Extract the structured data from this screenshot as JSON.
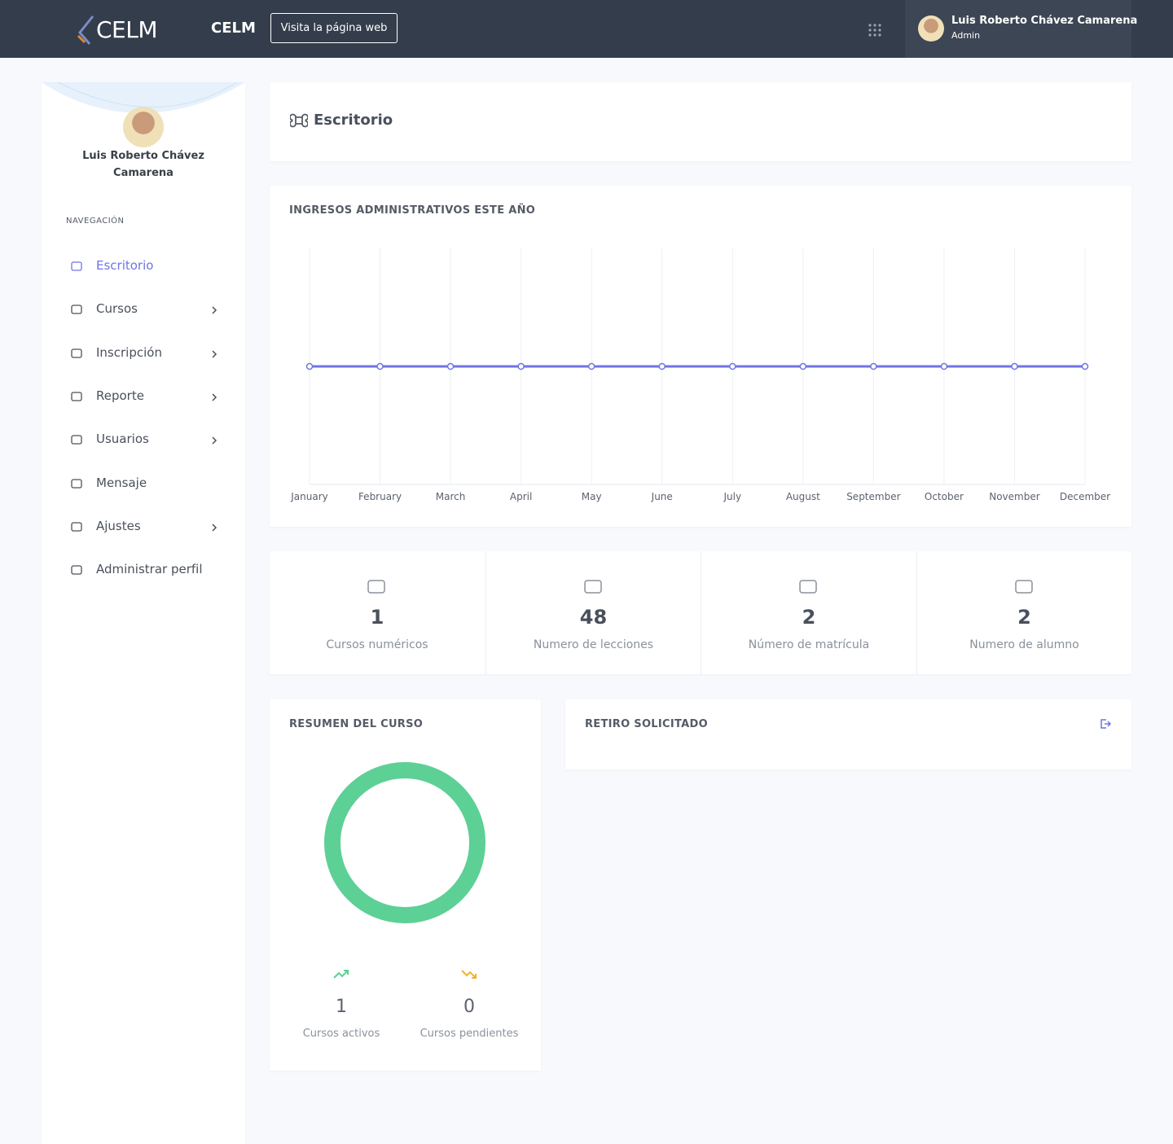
{
  "header": {
    "logo": "CELM",
    "brand": "CELM",
    "website_button": "Visita la página web",
    "user_name": "Luis Roberto Chávez Camarena",
    "user_role": "Admin"
  },
  "sidebar": {
    "user_name": "Luis Roberto Chávez Camarena",
    "nav_title": "NAVEGACIÓN",
    "items": [
      {
        "label": "Escritorio",
        "has_submenu": false,
        "active": true
      },
      {
        "label": "Cursos",
        "has_submenu": true,
        "active": false
      },
      {
        "label": "Inscripción",
        "has_submenu": true,
        "active": false
      },
      {
        "label": "Reporte",
        "has_submenu": true,
        "active": false
      },
      {
        "label": "Usuarios",
        "has_submenu": true,
        "active": false
      },
      {
        "label": "Mensaje",
        "has_submenu": false,
        "active": false
      },
      {
        "label": "Ajustes",
        "has_submenu": true,
        "active": false
      },
      {
        "label": "Administrar perfil",
        "has_submenu": false,
        "active": false
      }
    ]
  },
  "page_title": "Escritorio",
  "chart_data": {
    "type": "line",
    "title": "INGRESOS ADMINISTRATIVOS ESTE AÑO",
    "categories": [
      "January",
      "February",
      "March",
      "April",
      "May",
      "June",
      "July",
      "August",
      "September",
      "October",
      "November",
      "December"
    ],
    "series": [
      {
        "color": "#6f74e4",
        "values": [
          0,
          0,
          0,
          0,
          0,
          0,
          0,
          0,
          0,
          0,
          0,
          0
        ]
      }
    ],
    "ylim": [
      -1,
      1
    ],
    "grid": true
  },
  "stats": [
    {
      "value": 1,
      "label": "Cursos numéricos"
    },
    {
      "value": 48,
      "label": "Numero de lecciones"
    },
    {
      "value": 2,
      "label": "Número de matrícula"
    },
    {
      "value": 2,
      "label": "Numero de alumno"
    }
  ],
  "summary": {
    "title": "RESUMEN DEL CURSO",
    "items": [
      {
        "value": 1,
        "label": "Cursos activos",
        "color": "#5dd095"
      },
      {
        "value": 0,
        "label": "Cursos pendientes",
        "color": "#f0b429"
      }
    ]
  },
  "withdrawals": {
    "title": "RETIRO SOLICITADO"
  }
}
